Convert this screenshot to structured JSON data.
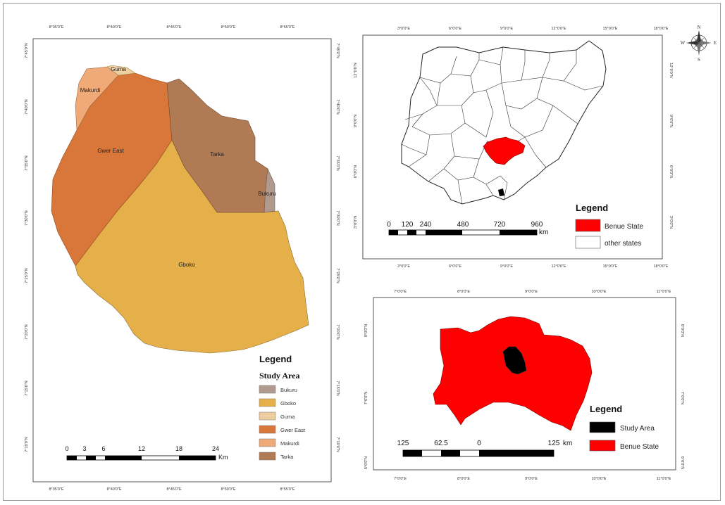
{
  "study_area_map": {
    "lgas": [
      {
        "name": "Bukuru",
        "color": "#b09a8e"
      },
      {
        "name": "Gboko",
        "color": "#e5b04a"
      },
      {
        "name": "Guma",
        "color": "#efcfa0"
      },
      {
        "name": "Gwer East",
        "color": "#d9763a"
      },
      {
        "name": "Makurdi",
        "color": "#efaa78"
      },
      {
        "name": "Tarka",
        "color": "#b07a55"
      }
    ],
    "labels": {
      "guma": "Guma",
      "makurdi": "Makurdi",
      "gwer_east": "Gwer East",
      "tarka": "Tarka",
      "bukuru": "Bukuru",
      "gboko": "Gboko"
    },
    "legend": {
      "title": "Legend",
      "subtitle": "Study Area",
      "items": [
        "Bukuru",
        "Gboko",
        "Guma",
        "Gwer East",
        "Makurdi",
        "Tarka"
      ]
    },
    "scale": {
      "ticks": [
        "0",
        "3",
        "6",
        "12",
        "18",
        "24"
      ],
      "unit": "Km"
    },
    "ticks": {
      "top": [
        "8°35'0\"E",
        "8°40'0\"E",
        "8°45'0\"E",
        "8°50'0\"E",
        "8°55'0\"E"
      ],
      "bottom": [
        "8°35'0\"E",
        "8°40'0\"E",
        "8°45'0\"E",
        "8°50'0\"E",
        "8°55'0\"E"
      ],
      "left": [
        "7°45'0\"N",
        "7°40'0\"N",
        "7°35'0\"N",
        "7°30'0\"N",
        "7°25'0\"N",
        "7°20'0\"N",
        "7°15'0\"N",
        "7°10'0\"N"
      ],
      "right": [
        "7°45'0\"N",
        "7°40'0\"N",
        "7°35'0\"N",
        "7°30'0\"N",
        "7°25'0\"N",
        "7°20'0\"N",
        "7°15'0\"N",
        "7°10'0\"N"
      ]
    }
  },
  "nigeria_map": {
    "benue_color": "#ff0000",
    "legend": {
      "title": "Legend",
      "items": [
        "Benue State",
        "other states"
      ]
    },
    "scale": {
      "ticks": [
        "0",
        "120",
        "240",
        "480",
        "720",
        "960"
      ],
      "unit": "km"
    },
    "ticks": {
      "top": [
        "3°0'0\"E",
        "6°0'0\"E",
        "9°0'0\"E",
        "12°0'0\"E",
        "15°0'0\"E",
        "18°0'0\"E"
      ],
      "bottom": [
        "3°0'0\"E",
        "6°0'0\"E",
        "9°0'0\"E",
        "12°0'0\"E",
        "15°0'0\"E",
        "18°0'0\"E"
      ],
      "left": [
        "12°0'0\"N",
        "9°0'0\"N",
        "6°0'0\"N",
        "3°0'0\"N"
      ],
      "right": [
        "12°0'0\"N",
        "9°0'0\"N",
        "6°0'0\"N",
        "3°0'0\"N"
      ]
    }
  },
  "benue_map": {
    "legend": {
      "title": "Legend",
      "items": [
        "Study Area",
        "Benue State"
      ]
    },
    "scale": {
      "ticks": [
        "125",
        "62.5",
        "0",
        "125"
      ],
      "unit": "km"
    },
    "ticks": {
      "top": [
        "7°0'0\"E",
        "8°0'0\"E",
        "9°0'0\"E",
        "10°0'0\"E",
        "11°0'0\"E"
      ],
      "bottom": [
        "7°0'0\"E",
        "8°0'0\"E",
        "9°0'0\"E",
        "10°0'0\"E",
        "11°0'0\"E"
      ],
      "left": [
        "8°0'0\"N",
        "7°0'0\"N",
        "6°0'0\"N"
      ],
      "right": [
        "8°0'0\"N",
        "7°0'0\"N",
        "6°0'0\"N"
      ]
    }
  },
  "north_arrow": {
    "n": "N",
    "s": "S",
    "e": "E",
    "w": "W"
  }
}
